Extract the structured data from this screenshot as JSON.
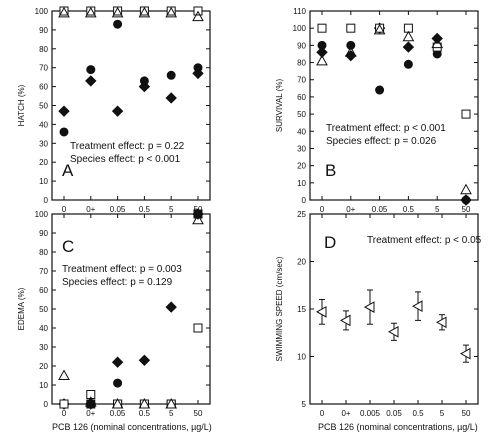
{
  "x_axis_title": "PCB 126 (nominal concentrations, µg/L)",
  "chart_data": [
    {
      "id": "A",
      "panel_label": "A",
      "type": "scatter",
      "ylabel": "HATCH (%)",
      "ylim": [
        0,
        100
      ],
      "yticks": [
        0,
        10,
        20,
        30,
        40,
        50,
        60,
        70,
        80,
        90,
        100
      ],
      "categories": [
        "0",
        "0+",
        "0.05",
        "0.5",
        "5",
        "50"
      ],
      "series": [
        {
          "marker": "circle-filled",
          "values": [
            36,
            69,
            93,
            63,
            66,
            70
          ]
        },
        {
          "marker": "diamond-filled",
          "values": [
            47,
            63,
            47,
            60,
            54,
            67
          ]
        },
        {
          "marker": "square-open",
          "values": [
            100,
            100,
            100,
            100,
            100,
            100
          ]
        },
        {
          "marker": "triangle-open",
          "values": [
            99,
            99,
            99,
            99,
            99,
            97
          ]
        }
      ],
      "annotations": [
        "Treatment effect: p = 0.22",
        "Species effect: p < 0.001"
      ]
    },
    {
      "id": "B",
      "panel_label": "B",
      "type": "scatter",
      "ylabel": "SURVIVAL (%)",
      "ylim": [
        0,
        110
      ],
      "yticks": [
        0,
        10,
        20,
        30,
        40,
        50,
        60,
        70,
        80,
        90,
        100,
        110
      ],
      "categories": [
        "0",
        "0+",
        "0.05",
        "0.5",
        "5",
        "50"
      ],
      "series": [
        {
          "marker": "circle-filled",
          "values": [
            90,
            90,
            64,
            79,
            85,
            0
          ]
        },
        {
          "marker": "diamond-filled",
          "values": [
            86,
            84,
            100,
            89,
            94,
            0
          ]
        },
        {
          "marker": "square-open",
          "values": [
            100,
            100,
            100,
            100,
            89,
            50
          ]
        },
        {
          "marker": "triangle-open",
          "values": [
            81,
            86,
            99,
            95,
            91,
            6
          ]
        }
      ],
      "annotations": [
        "Treatment effect: p < 0.001",
        "Species effect: p = 0.026"
      ]
    },
    {
      "id": "C",
      "panel_label": "C",
      "type": "scatter",
      "ylabel": "EDEMA (%)",
      "ylim": [
        0,
        100
      ],
      "yticks": [
        0,
        10,
        20,
        30,
        40,
        50,
        60,
        70,
        80,
        90,
        100
      ],
      "categories": [
        "0",
        "0+",
        "0.05",
        "0.5",
        "5",
        "50"
      ],
      "series": [
        {
          "marker": "circle-filled",
          "values": [
            0,
            0,
            11,
            0,
            0,
            100
          ]
        },
        {
          "marker": "diamond-filled",
          "values": [
            0,
            0,
            22,
            23,
            51,
            100
          ]
        },
        {
          "marker": "square-filled",
          "values": [
            0,
            0,
            0,
            0,
            0,
            100
          ]
        },
        {
          "marker": "square-open",
          "values": [
            0,
            5,
            0,
            0,
            0,
            40
          ]
        },
        {
          "marker": "triangle-open",
          "values": [
            15,
            1,
            0,
            0,
            0,
            97
          ]
        }
      ],
      "annotations": [
        "Treatment effect: p = 0.003",
        "Species effect: p = 0.129"
      ]
    },
    {
      "id": "D",
      "panel_label": "D",
      "type": "scatter",
      "ylabel": "SWIMMING SPEED (cm/sec)",
      "ylim": [
        5,
        25
      ],
      "yticks": [
        5,
        10,
        15,
        20,
        25
      ],
      "categories": [
        "0",
        "0+",
        "0.005",
        "0.05",
        "0.5",
        "5",
        "50"
      ],
      "series": [
        {
          "marker": "triangle-left-open",
          "values": [
            14.7,
            13.8,
            15.2,
            12.6,
            15.3,
            13.6,
            10.3
          ],
          "errors": [
            1.3,
            1.0,
            1.8,
            0.9,
            1.5,
            0.8,
            0.9
          ]
        }
      ],
      "annotations": [
        "Treatment effect: p < 0.05"
      ]
    }
  ]
}
